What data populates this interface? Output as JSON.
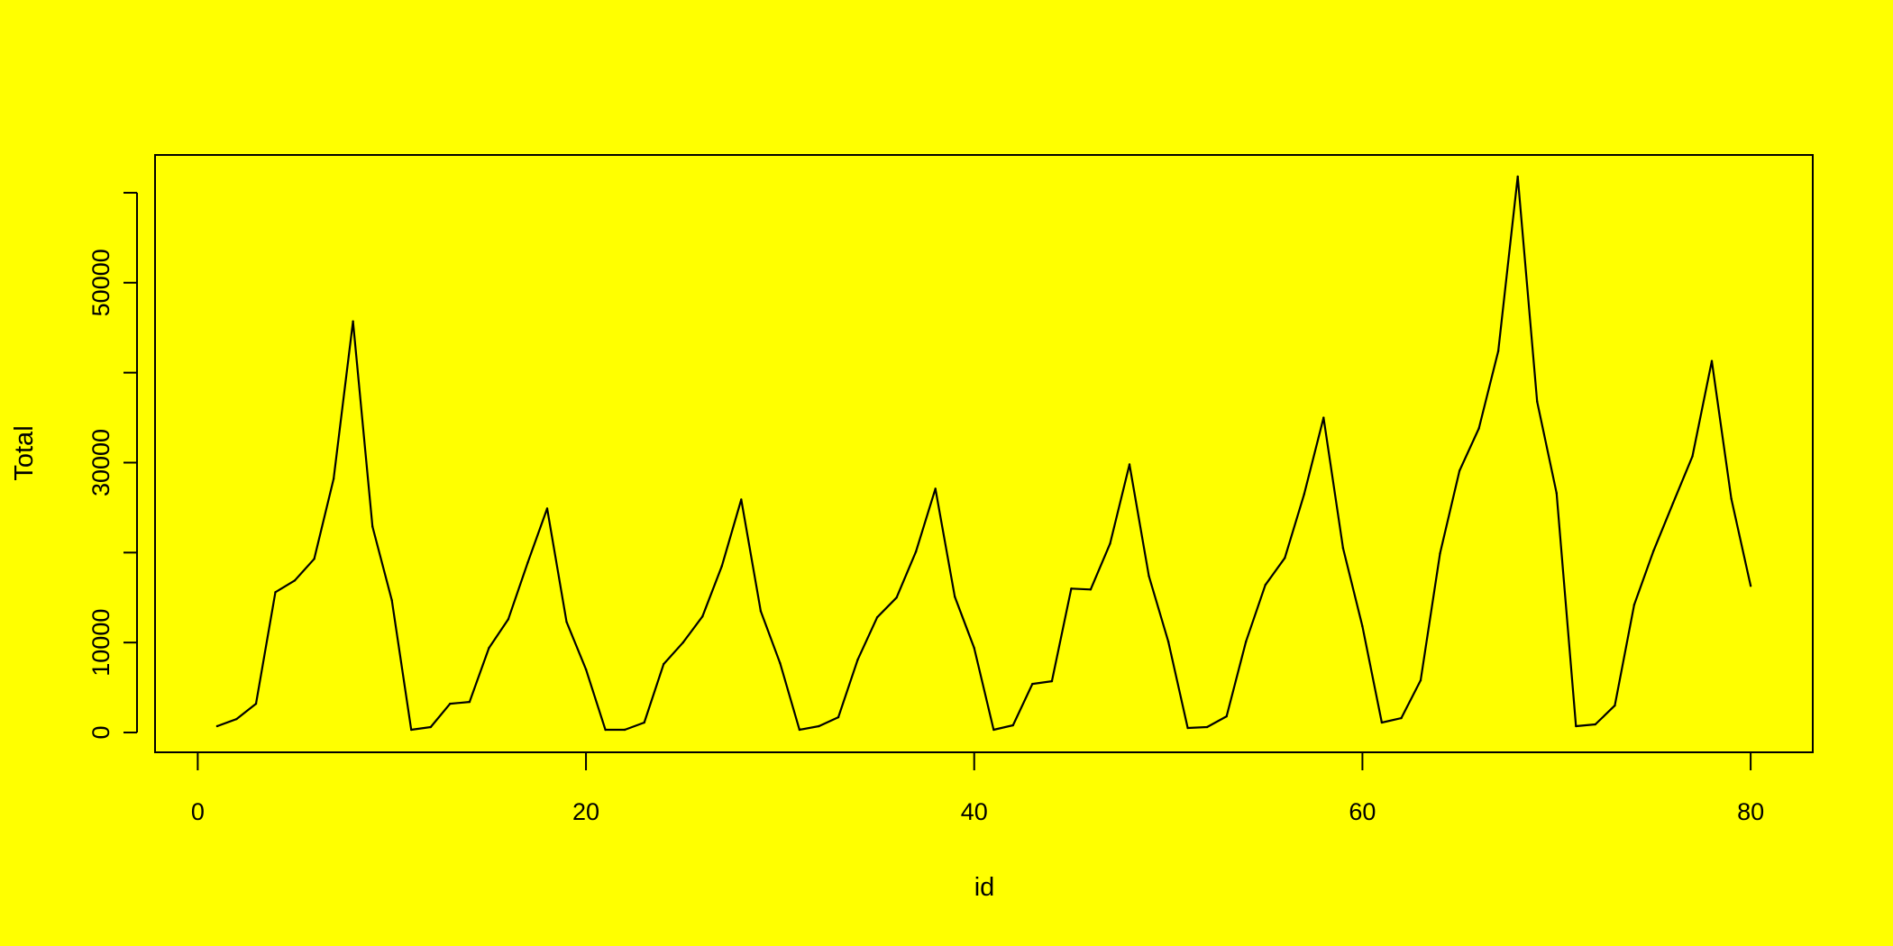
{
  "chart_data": {
    "type": "line",
    "title": "",
    "xlabel": "id",
    "ylabel": "Total",
    "xlim": [
      -2.2,
      83.2
    ],
    "ylim": [
      -2200,
      64200
    ],
    "x_ticks": [
      0,
      20,
      40,
      60,
      80
    ],
    "y_ticks": [
      0,
      10000,
      20000,
      30000,
      40000,
      50000,
      60000
    ],
    "y_tick_labels": [
      "0",
      "10000",
      "",
      "30000",
      "",
      "50000",
      ""
    ],
    "background": "#ffff00",
    "line_color": "#000000",
    "grid": false,
    "series": [
      {
        "x": [
          1,
          2,
          3,
          4,
          5,
          6,
          7,
          8,
          9,
          10,
          11,
          12,
          13,
          14,
          15,
          16,
          17,
          18,
          19,
          20,
          21,
          22,
          23,
          24,
          25,
          26,
          27,
          28,
          29,
          30,
          31,
          32,
          33,
          34,
          35,
          36,
          37,
          38,
          39,
          40,
          41,
          42,
          43,
          44,
          45,
          46,
          47,
          48,
          49,
          50,
          51,
          52,
          53,
          54,
          55,
          56,
          57,
          58,
          59,
          60,
          61,
          62,
          63,
          64,
          65,
          66,
          67,
          68,
          69,
          70,
          71,
          72,
          73,
          74,
          75,
          76,
          77,
          78,
          79,
          80
        ],
        "values": [
          700,
          1500,
          3200,
          15600,
          16900,
          19300,
          28200,
          45700,
          22900,
          14700,
          300,
          600,
          3200,
          3400,
          9400,
          12600,
          18900,
          24900,
          12300,
          7000,
          300,
          300,
          1100,
          7600,
          10000,
          12900,
          18500,
          25900,
          13500,
          7700,
          300,
          700,
          1700,
          8100,
          12800,
          15000,
          20100,
          27100,
          15100,
          9400,
          300,
          800,
          5400,
          5700,
          16000,
          15900,
          21000,
          29800,
          17400,
          10100,
          500,
          600,
          1800,
          10100,
          16400,
          19400,
          26500,
          35000,
          20500,
          11800,
          1100,
          1600,
          5800,
          19900,
          29100,
          33800,
          42400,
          61800,
          36800,
          26600,
          700,
          900,
          3000,
          14200,
          20200,
          25500,
          30700,
          41300,
          26000,
          16300
        ]
      }
    ]
  }
}
